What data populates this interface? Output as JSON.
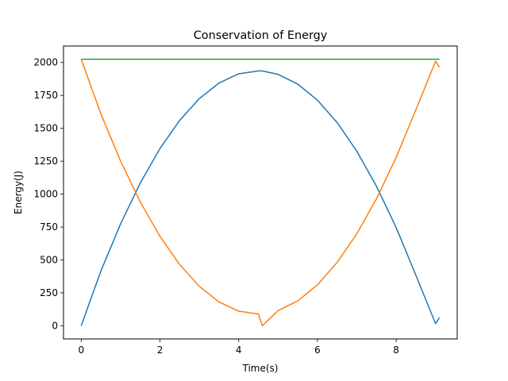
{
  "chart_data": {
    "type": "line",
    "title": "Conservation of Energy",
    "xlabel": "Time(s)",
    "ylabel": "Energy(J)",
    "xlim": [
      -0.45,
      9.55
    ],
    "ylim": [
      -100,
      2125
    ],
    "xticks": [
      0,
      2,
      4,
      6,
      8
    ],
    "yticks": [
      0,
      250,
      500,
      750,
      1000,
      1250,
      1500,
      1750,
      2000
    ],
    "grid": false,
    "legend": "none",
    "series": [
      {
        "color": "#1f77b4",
        "x": [
          0,
          0.5,
          1,
          1.5,
          2,
          2.5,
          3,
          3.5,
          4,
          4.5,
          4.6,
          5,
          5.5,
          6,
          6.5,
          7,
          7.5,
          8,
          8.5,
          9,
          9.1
        ],
        "y": [
          0,
          416,
          774,
          1084,
          1346,
          1560,
          1726,
          1844,
          1914,
          1936,
          1936,
          1910,
          1836,
          1714,
          1544,
          1326,
          1060,
          746,
          384,
          16,
          62
        ]
      },
      {
        "color": "#ff7f0e",
        "x": [
          0,
          0.5,
          1,
          1.5,
          2,
          2.5,
          3,
          3.5,
          4,
          4.5,
          4.6,
          5,
          5.5,
          6,
          6.5,
          7,
          7.5,
          8,
          8.5,
          9,
          9.1
        ],
        "y": [
          2025,
          1609,
          1251,
          941,
          679,
          465,
          299,
          181,
          111,
          89,
          0,
          115,
          189,
          311,
          481,
          699,
          965,
          1279,
          1641,
          2009,
          1963
        ]
      },
      {
        "color": "#2ca02c",
        "x": [
          0,
          9.1
        ],
        "y": [
          2025,
          2025
        ]
      }
    ]
  }
}
